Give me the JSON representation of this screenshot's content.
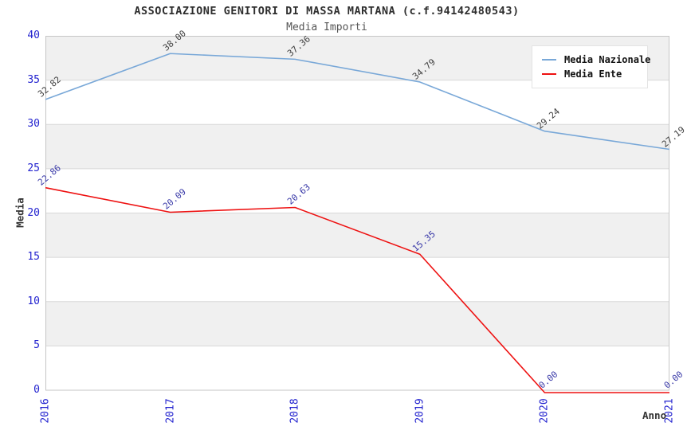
{
  "header": {
    "title": "ASSOCIAZIONE GENITORI DI MASSA MARTANA (c.f.94142480543)",
    "subtitle": "Media Importi"
  },
  "chart_data": {
    "type": "line",
    "categories": [
      "2016",
      "2017",
      "2018",
      "2019",
      "2020",
      "2021"
    ],
    "series": [
      {
        "name": "Media Nazionale",
        "color": "#79a8d8",
        "label_color": "#3f3f3f",
        "values": [
          32.82,
          38.0,
          37.36,
          34.79,
          29.24,
          27.19
        ]
      },
      {
        "name": "Media Ente",
        "color": "#ee1111",
        "label_color": "#3939a8",
        "values": [
          22.86,
          20.09,
          20.63,
          15.35,
          0.0,
          0.0
        ]
      }
    ],
    "title": "Media Importi",
    "xlabel": "Anno",
    "ylabel": "Media",
    "ylim": [
      0,
      40
    ],
    "yticks": [
      0,
      5,
      10,
      15,
      20,
      25,
      30,
      35,
      40
    ],
    "grid": "horizontal, alternating shaded bands",
    "legend_position": "top-right",
    "point_labels": "values shown rotated ~40deg above each point, two decimals"
  },
  "colors": {
    "axis_tick_text": "#2323cf",
    "band_fill": "#f0f0f0",
    "gridline": "#d8d8d8",
    "plot_border": "#c6c6c6",
    "background": "#ffffff"
  }
}
